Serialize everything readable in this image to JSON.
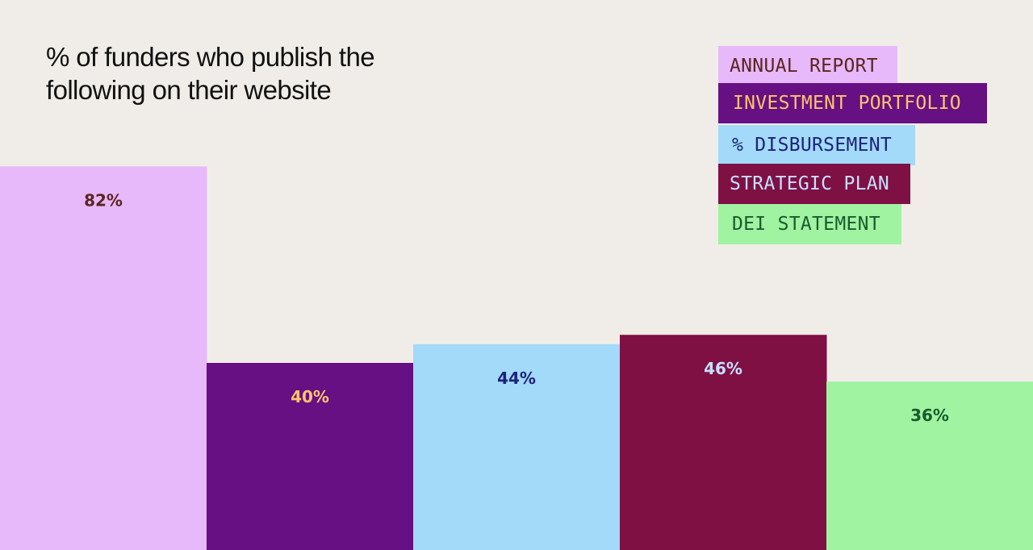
{
  "chart_data": {
    "type": "bar",
    "title": "% of funders who publish the following on their website",
    "categories": [
      "ANNUAL REPORT",
      "INVESTMENT PORTFOLIO",
      "% DISBURSEMENT",
      "STRATEGIC PLAN",
      "DEI STATEMENT"
    ],
    "values": [
      82,
      40,
      44,
      46,
      36
    ],
    "data_labels": [
      "82%",
      "40%",
      "44%",
      "46%",
      "36%"
    ],
    "value_unit": "%",
    "ylim": [
      0,
      100
    ],
    "grid": false,
    "legend_position": "top-right",
    "colors": [
      "#e7b8fa",
      "#661083",
      "#a3d9f9",
      "#7f1044",
      "#9ff3a1"
    ],
    "label_colors": [
      "#5a2620",
      "#ffc36b",
      "#1b237a",
      "#c5e0ff",
      "#195c2d"
    ]
  }
}
